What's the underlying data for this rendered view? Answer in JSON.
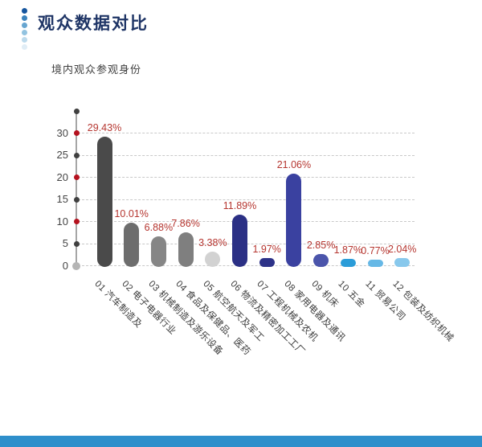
{
  "page": {
    "title": "观众数据对比",
    "subtitle": "境内观众参观身份"
  },
  "decor": {
    "accent_dot_colors": [
      "#15559e",
      "#3c83bd",
      "#66a5d0",
      "#92c3e0",
      "#bcdaec",
      "#e0edf6"
    ],
    "footer_bar_color": "#2e8fcb"
  },
  "chart_data": {
    "type": "bar",
    "title": "境内观众参观身份",
    "categories": [
      "01 汽车制造及",
      "02 电子电器行业",
      "03 机械制造及游乐设备",
      "04 食品及保健品、医药",
      "05 航空航天及军工",
      "06 物流及精密加工工厂",
      "07 工程机械及农机",
      "08 家用电器及通讯",
      "09 机床",
      "10 五金",
      "11 贸易公司",
      "12 包装及纺织机械"
    ],
    "values": [
      29.43,
      10.01,
      6.88,
      7.86,
      3.38,
      11.89,
      1.97,
      21.06,
      2.85,
      1.87,
      0.77,
      2.04
    ],
    "value_labels": [
      "29.43%",
      "10.01%",
      "6.88%",
      "7.86%",
      "3.38%",
      "11.89%",
      "1.97%",
      "21.06%",
      "2.85%",
      "1.87%",
      "0.77%",
      "2.04%"
    ],
    "bar_colors": [
      "#4a4a4a",
      "#6d6d6d",
      "#868686",
      "#7f7f7f",
      "#d2d2d2",
      "#2b3085",
      "#2d3288",
      "#3a41a0",
      "#4b55ab",
      "#2b9cd8",
      "#66b8e6",
      "#88c8ec"
    ],
    "value_label_color": "#b5352f",
    "xlabel": "",
    "ylabel": "",
    "y_ticks": [
      0,
      5,
      10,
      15,
      20,
      25,
      30
    ],
    "ylim": [
      0,
      35
    ],
    "grid": "horizontal dashed",
    "legend": "none",
    "axis_dot_colors": {
      "major_red": "#b5121f",
      "minor_dark": "#404040",
      "zero": "#b5b5b5"
    }
  }
}
